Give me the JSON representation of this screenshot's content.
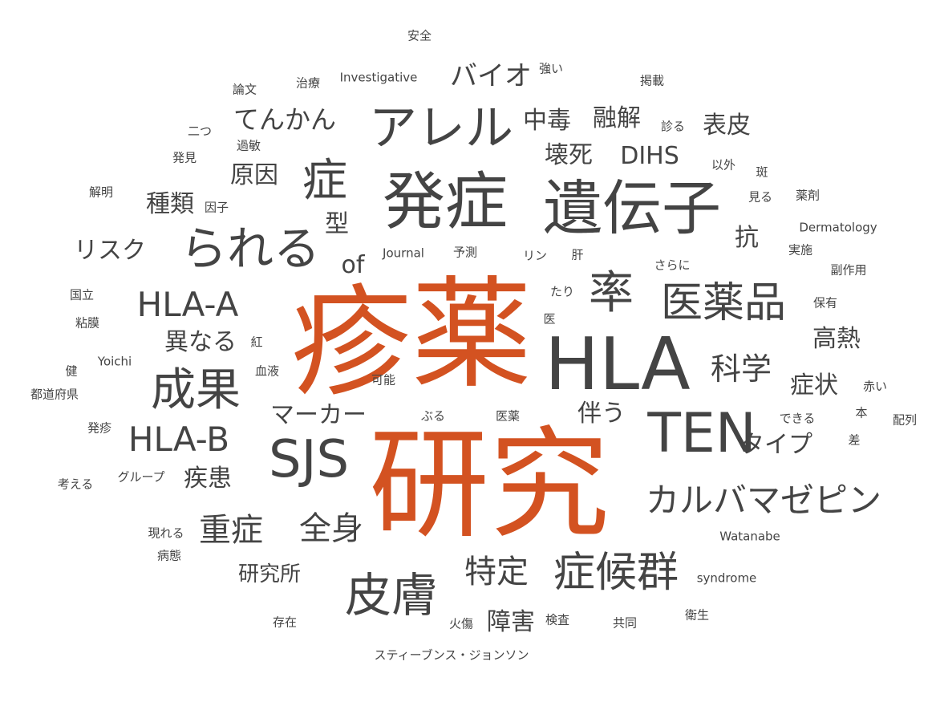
{
  "colors": {
    "highlight": "#d35221",
    "text": "#444444",
    "background": "#ffffff"
  },
  "words": [
    {
      "text": "疹",
      "weight": 100,
      "highlight": true
    },
    {
      "text": "薬",
      "weight": 100,
      "highlight": true
    },
    {
      "text": "研究",
      "weight": 100,
      "highlight": true
    },
    {
      "text": "HLA",
      "weight": 70
    },
    {
      "text": "発症",
      "weight": 62
    },
    {
      "text": "遺伝子",
      "weight": 60
    },
    {
      "text": "TEN",
      "weight": 58
    },
    {
      "text": "SJS",
      "weight": 56
    },
    {
      "text": "アレル",
      "weight": 50
    },
    {
      "text": "られる",
      "weight": 48
    },
    {
      "text": "皮膚",
      "weight": 48
    },
    {
      "text": "成果",
      "weight": 46
    },
    {
      "text": "症",
      "weight": 46
    },
    {
      "text": "率",
      "weight": 46
    },
    {
      "text": "医薬品",
      "weight": 44
    },
    {
      "text": "症候群",
      "weight": 44
    },
    {
      "text": "カルバマゼピン",
      "weight": 38
    },
    {
      "text": "HLA-A",
      "weight": 38
    },
    {
      "text": "HLA-B",
      "weight": 38
    },
    {
      "text": "重症",
      "weight": 38
    },
    {
      "text": "全身",
      "weight": 38
    },
    {
      "text": "特定",
      "weight": 38
    },
    {
      "text": "科学",
      "weight": 36
    },
    {
      "text": "バイオ",
      "weight": 30
    },
    {
      "text": "てんかん",
      "weight": 28
    },
    {
      "text": "中毒",
      "weight": 28
    },
    {
      "text": "融解",
      "weight": 28
    },
    {
      "text": "表皮",
      "weight": 28
    },
    {
      "text": "壊死",
      "weight": 28
    },
    {
      "text": "DIHS",
      "weight": 28
    },
    {
      "text": "原因",
      "weight": 28
    },
    {
      "text": "種類",
      "weight": 28
    },
    {
      "text": "型",
      "weight": 28
    },
    {
      "text": "リスク",
      "weight": 28
    },
    {
      "text": "of",
      "weight": 28
    },
    {
      "text": "抗",
      "weight": 28
    },
    {
      "text": "高熱",
      "weight": 28
    },
    {
      "text": "異なる",
      "weight": 28
    },
    {
      "text": "症状",
      "weight": 28
    },
    {
      "text": "伴う",
      "weight": 28
    },
    {
      "text": "タイプ",
      "weight": 28
    },
    {
      "text": "マーカー",
      "weight": 28
    },
    {
      "text": "疾患",
      "weight": 28
    },
    {
      "text": "研究所",
      "weight": 26
    },
    {
      "text": "障害",
      "weight": 28
    },
    {
      "text": "安全",
      "weight": 12
    },
    {
      "text": "論文",
      "weight": 12
    },
    {
      "text": "治療",
      "weight": 12
    },
    {
      "text": "Investigative",
      "weight": 12
    },
    {
      "text": "強い",
      "weight": 12
    },
    {
      "text": "掲載",
      "weight": 12
    },
    {
      "text": "二つ",
      "weight": 12
    },
    {
      "text": "過敏",
      "weight": 12
    },
    {
      "text": "診る",
      "weight": 12
    },
    {
      "text": "発見",
      "weight": 12
    },
    {
      "text": "以外",
      "weight": 12
    },
    {
      "text": "斑",
      "weight": 12
    },
    {
      "text": "解明",
      "weight": 12
    },
    {
      "text": "因子",
      "weight": 12
    },
    {
      "text": "見る",
      "weight": 12
    },
    {
      "text": "薬剤",
      "weight": 12
    },
    {
      "text": "Dermatology",
      "weight": 12
    },
    {
      "text": "Journal",
      "weight": 12
    },
    {
      "text": "予測",
      "weight": 12
    },
    {
      "text": "リン",
      "weight": 12
    },
    {
      "text": "肝",
      "weight": 12
    },
    {
      "text": "実施",
      "weight": 12
    },
    {
      "text": "さらに",
      "weight": 12
    },
    {
      "text": "副作用",
      "weight": 12
    },
    {
      "text": "国立",
      "weight": 12
    },
    {
      "text": "たり",
      "weight": 12
    },
    {
      "text": "保有",
      "weight": 12
    },
    {
      "text": "粘膜",
      "weight": 12
    },
    {
      "text": "医",
      "weight": 12
    },
    {
      "text": "紅",
      "weight": 12
    },
    {
      "text": "Yoichi",
      "weight": 12
    },
    {
      "text": "血液",
      "weight": 12
    },
    {
      "text": "可能",
      "weight": 12
    },
    {
      "text": "健",
      "weight": 12
    },
    {
      "text": "都道府県",
      "weight": 12
    },
    {
      "text": "赤い",
      "weight": 12
    },
    {
      "text": "ぶる",
      "weight": 12
    },
    {
      "text": "医薬",
      "weight": 12
    },
    {
      "text": "できる",
      "weight": 12
    },
    {
      "text": "本",
      "weight": 12
    },
    {
      "text": "配列",
      "weight": 12
    },
    {
      "text": "発疹",
      "weight": 12
    },
    {
      "text": "差",
      "weight": 12
    },
    {
      "text": "考える",
      "weight": 12
    },
    {
      "text": "グループ",
      "weight": 12
    },
    {
      "text": "現れる",
      "weight": 12
    },
    {
      "text": "Watanabe",
      "weight": 12
    },
    {
      "text": "病態",
      "weight": 12
    },
    {
      "text": "syndrome",
      "weight": 12
    },
    {
      "text": "存在",
      "weight": 12
    },
    {
      "text": "火傷",
      "weight": 12
    },
    {
      "text": "検査",
      "weight": 12
    },
    {
      "text": "共同",
      "weight": 12
    },
    {
      "text": "衛生",
      "weight": 12
    },
    {
      "text": "スティーブンス・ジョンソン",
      "weight": 12
    }
  ]
}
